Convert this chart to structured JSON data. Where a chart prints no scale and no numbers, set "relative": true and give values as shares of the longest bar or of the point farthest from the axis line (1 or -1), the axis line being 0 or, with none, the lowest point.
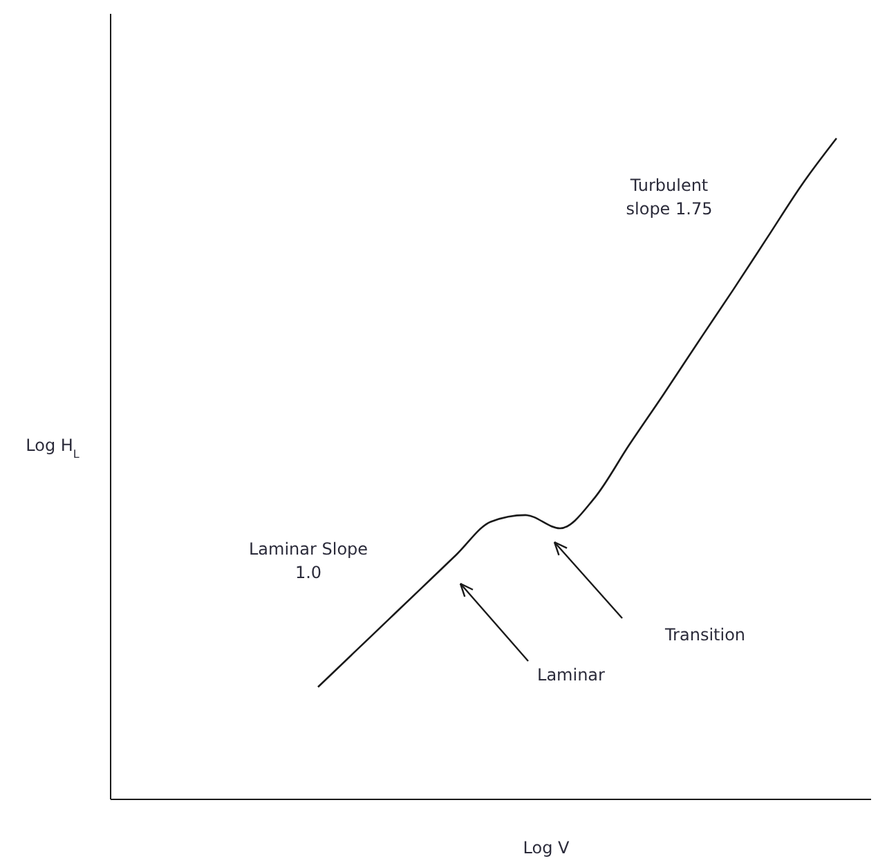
{
  "chart_data": {
    "type": "line",
    "relative": true,
    "xlabel": "Log V",
    "ylabel": "Log H$_{L}$",
    "categories": [
      null,
      null,
      null,
      null,
      null,
      null,
      null,
      null,
      null,
      null,
      null,
      null,
      null,
      null,
      null,
      null,
      null,
      null,
      null,
      null,
      null,
      null,
      null
    ],
    "series": [
      {
        "color": "#1a1a1a",
        "values": [
          null,
          null,
          null,
          null,
          null,
          null,
          0.17,
          0.22,
          0.27,
          0.32,
          0.37,
          0.42,
          0.43,
          0.41,
          0.456,
          0.536,
          0.613,
          0.692,
          0.77,
          0.85,
          0.93,
          1.0,
          null
        ]
      }
    ],
    "annotations": [
      "Turbulent\nslope 1.75",
      "Laminar Slope\n1.0",
      "Laminar",
      "Transition"
    ]
  }
}
